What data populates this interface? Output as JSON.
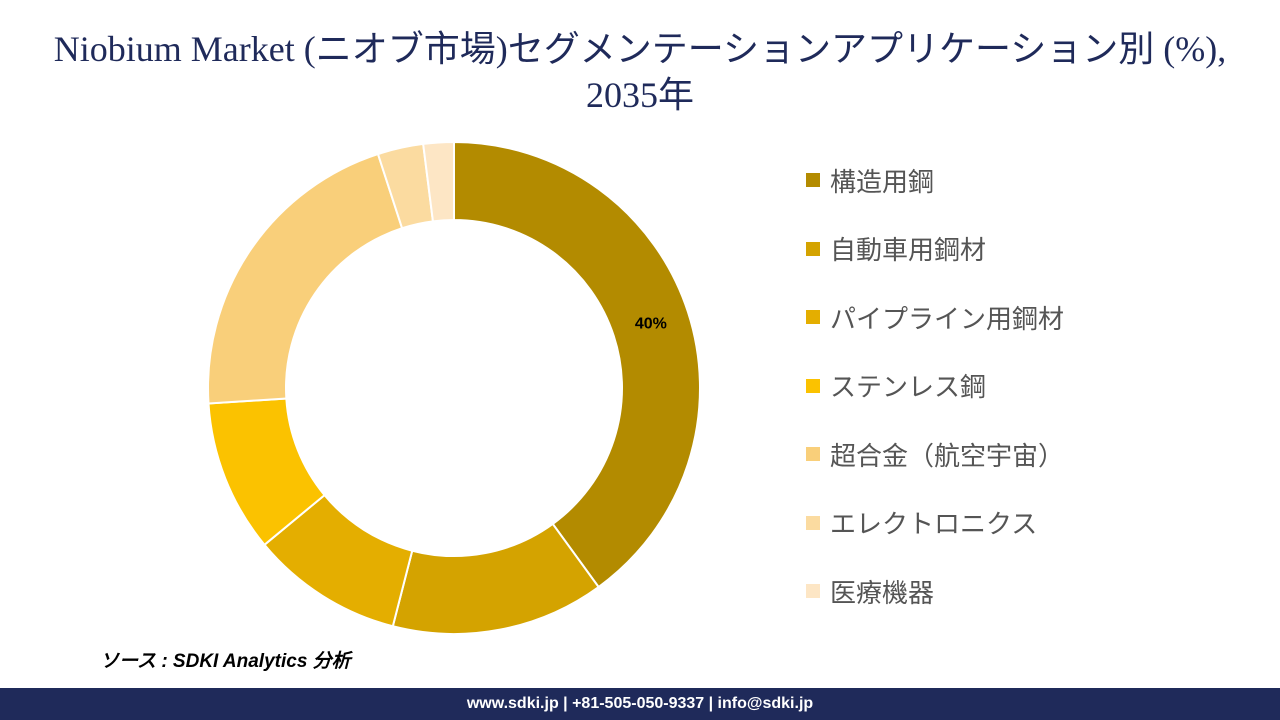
{
  "title": "Niobium Market (ニオブ市場)セグメンテーションアプリケーション別 (%), 2035年",
  "source": "ソース : SDKI Analytics 分析",
  "footer": "www.sdki.jp | +81-505-050-9337 | info@sdki.jp",
  "chart_data": {
    "type": "pie",
    "donut": true,
    "title": "Niobium Market (ニオブ市場)セグメンテーションアプリケーション別 (%), 2035年",
    "legend_position": "right",
    "categories": [
      "構造用鋼",
      "自動車用鋼材",
      "パイプライン用鋼材",
      "ステンレス鋼",
      "超合金（航空宇宙）",
      "エレクトロニクス",
      "医療機器"
    ],
    "values": [
      40,
      14,
      10,
      10,
      21,
      3,
      2
    ],
    "colors": [
      "#b38b00",
      "#d4a300",
      "#e4ae00",
      "#fbc200",
      "#f9cf7a",
      "#fbdba0",
      "#fde6c5"
    ],
    "data_labels": [
      "40%",
      "",
      "",
      "",
      "",
      "",
      ""
    ]
  }
}
